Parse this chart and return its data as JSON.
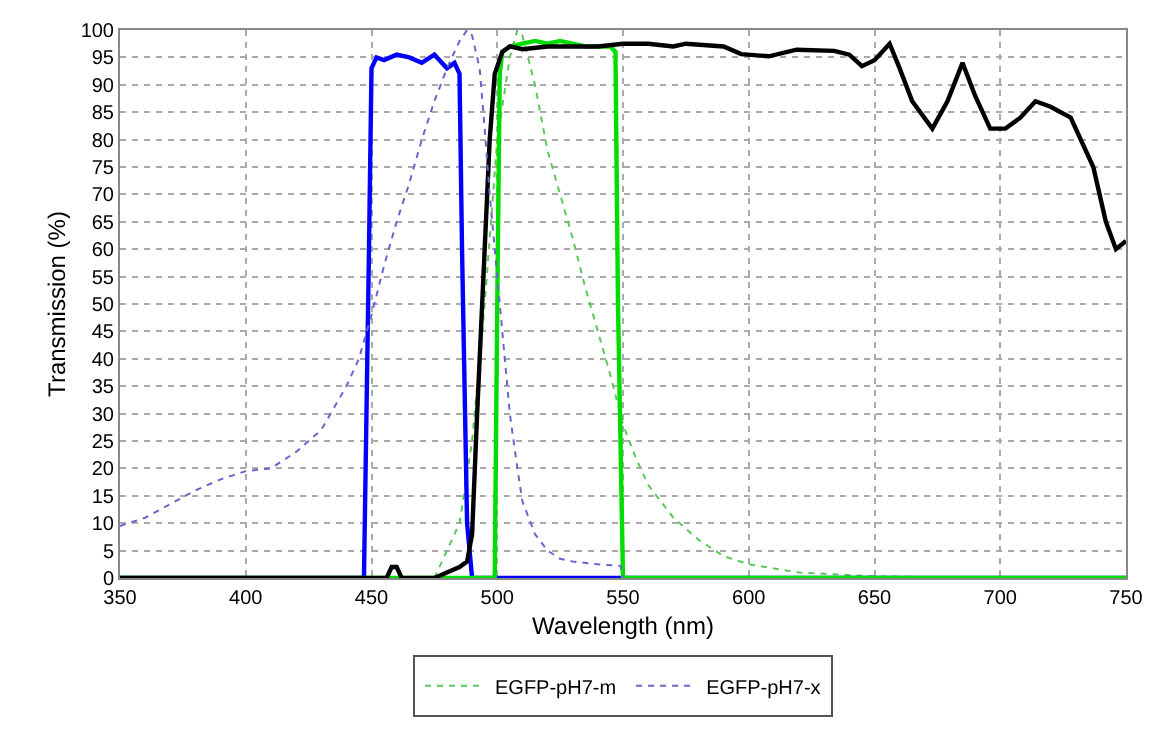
{
  "chart_data": {
    "type": "line",
    "xlabel": "Wavelength (nm)",
    "ylabel": "Transmission (%)",
    "xlim": [
      350,
      750
    ],
    "ylim": [
      0,
      100
    ],
    "xticks": [
      350,
      400,
      450,
      500,
      550,
      600,
      650,
      700,
      750
    ],
    "yticks": [
      0,
      5,
      10,
      15,
      20,
      25,
      30,
      35,
      40,
      45,
      50,
      55,
      60,
      65,
      70,
      75,
      80,
      85,
      90,
      95,
      100
    ],
    "grid": true,
    "legend": "bottom",
    "marker": "none",
    "series": [
      {
        "name": "EGFP-pH7-m",
        "color": "#5cc85c",
        "line_style": "dotted",
        "x": [
          475,
          480,
          485,
          490,
          495,
          500,
          505,
          508,
          510,
          515,
          520,
          525,
          530,
          535,
          540,
          545,
          550,
          555,
          560,
          570,
          580,
          590,
          600,
          620,
          650,
          700,
          750
        ],
        "values": [
          0,
          5,
          10,
          25,
          50,
          80,
          95,
          100,
          99,
          90,
          78,
          70,
          62,
          53,
          45,
          37,
          28,
          22,
          17,
          11,
          7,
          4,
          2.5,
          1,
          0.3,
          0,
          0
        ]
      },
      {
        "color": "#0000ff",
        "line_style": "solid",
        "x": [
          350,
          447,
          449,
          450,
          452,
          455,
          460,
          465,
          470,
          475,
          480,
          483,
          485,
          486,
          488,
          490,
          750
        ],
        "values": [
          0,
          0,
          60,
          93,
          95,
          94.5,
          95.5,
          95,
          94,
          95.5,
          93,
          94,
          92,
          60,
          10,
          0,
          0
        ]
      },
      {
        "color": "#00dd00",
        "line_style": "solid",
        "x": [
          350,
          499,
          500,
          501,
          502,
          505,
          510,
          515,
          520,
          525,
          530,
          535,
          545,
          547,
          548,
          550,
          750
        ],
        "values": [
          0,
          0,
          50,
          92,
          96,
          97,
          97.5,
          98,
          97.5,
          98,
          97.5,
          97,
          97,
          96,
          50,
          0,
          0
        ]
      },
      {
        "color": "#000000",
        "line_style": "solid",
        "x": [
          350,
          456,
          458,
          460,
          462,
          475,
          480,
          485,
          488,
          490,
          492,
          495,
          497,
          499,
          502,
          505,
          510,
          520,
          530,
          540,
          550,
          560,
          570,
          575,
          590,
          597,
          608,
          619,
          634,
          640,
          645,
          650,
          656,
          660,
          665,
          673,
          679,
          685,
          690,
          696,
          702,
          708,
          714,
          720,
          728,
          737,
          742,
          746,
          750
        ],
        "values": [
          0,
          0,
          2,
          2,
          0,
          0,
          1,
          2,
          3,
          8,
          30,
          60,
          80,
          92,
          96,
          97,
          96.5,
          97,
          97,
          97,
          97.5,
          97.5,
          97,
          97.5,
          97,
          95.6,
          95.2,
          96.4,
          96.2,
          95.5,
          93.4,
          94.5,
          97.5,
          93,
          87,
          82,
          87,
          94,
          88,
          82,
          82,
          84,
          87,
          86,
          84,
          75,
          65,
          60,
          61.5
        ]
      },
      {
        "name": "EGFP-pH7-x",
        "color": "#6666cc",
        "line_style": "dotted",
        "x": [
          350,
          360,
          370,
          380,
          390,
          400,
          410,
          420,
          430,
          440,
          445,
          450,
          455,
          460,
          465,
          470,
          475,
          480,
          485,
          488,
          490,
          493,
          495,
          497,
          500,
          503,
          505,
          508,
          510,
          515,
          520,
          525,
          530,
          540,
          549,
          550
        ],
        "values": [
          9.5,
          11,
          13.5,
          16,
          18,
          19.5,
          20,
          23,
          27,
          35,
          40,
          48,
          57,
          65,
          72,
          80,
          87,
          93,
          98,
          100,
          99,
          93,
          82,
          70,
          55,
          40,
          30,
          20,
          14,
          8,
          5,
          3.5,
          3,
          2.5,
          2.2,
          0
        ]
      }
    ]
  }
}
